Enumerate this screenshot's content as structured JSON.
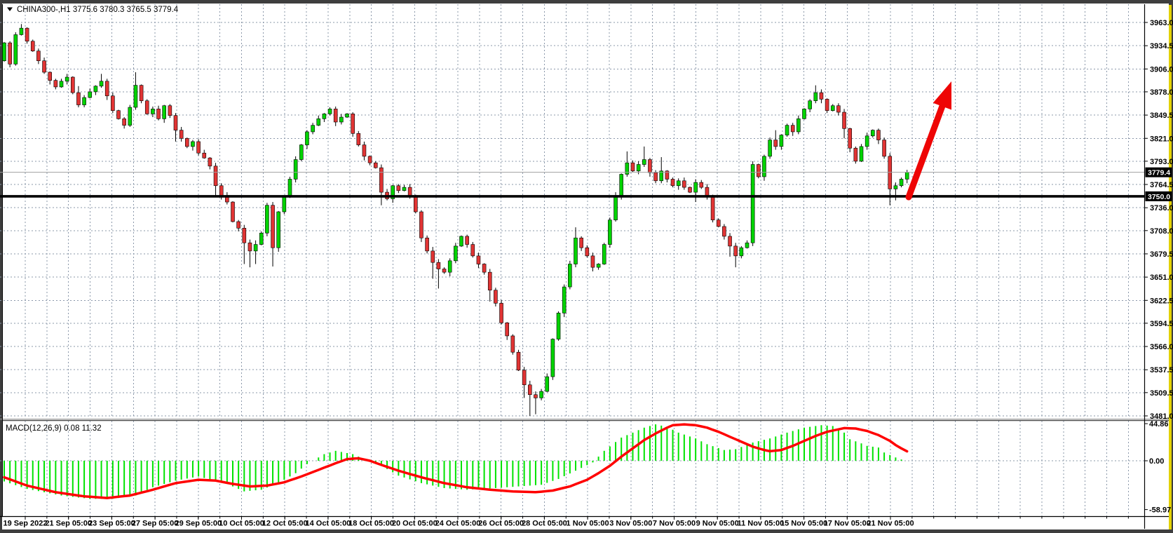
{
  "window": {
    "border_color": "#3e3e3e",
    "accent_strip_color": "#e3d200"
  },
  "chart": {
    "title": "CHINA300-,H1  3775.6 3780.3 3765.5 3779.4",
    "symbol": "CHINA300-",
    "timeframe": "H1",
    "collapse_icon": "triangle-down",
    "price_axis_labels": [
      "3963.0",
      "3934.5",
      "3906.0",
      "3878.0",
      "3849.5",
      "3821.0",
      "3793.0",
      "3764.5",
      "3736.0",
      "3708.0",
      "3679.5",
      "3651.0",
      "3622.5",
      "3594.5",
      "3566.0",
      "3537.5",
      "3509.5",
      "3481.0"
    ],
    "time_axis_labels": [
      "19 Sep 2022",
      "21 Sep 05:00",
      "23 Sep 05:00",
      "27 Sep 05:00",
      "29 Sep 05:00",
      "10 Oct 05:00",
      "12 Oct 05:00",
      "14 Oct 05:00",
      "18 Oct 05:00",
      "20 Oct 05:00",
      "24 Oct 05:00",
      "26 Oct 05:00",
      "28 Oct 05:00",
      "1 Nov 05:00",
      "3 Nov 05:00",
      "7 Nov 05:00",
      "9 Nov 05:00",
      "11 Nov 05:00",
      "15 Nov 05:00",
      "17 Nov 05:00",
      "21 Nov 05:00"
    ],
    "current_price_badge": "3779.4",
    "support_price_badge": "3750.0",
    "colors": {
      "grid": "#8b98aa",
      "bull": "#00d300",
      "bear": "#e13434",
      "wick": "#000000",
      "hist": "#00e300",
      "signal": "#ff0000",
      "support_line": "#000000",
      "price_line": "#a0a0a0",
      "badge_bg": "#000000",
      "badge_fg": "#ffffff",
      "arrow": "#ee0505",
      "axis_line": "#000000"
    }
  },
  "macd": {
    "title": "MACD(12,26,9) 0.08 11.32",
    "axis_labels": [
      "44.86",
      "0.00",
      "-58.97"
    ],
    "current_macd": "0.08",
    "current_signal": "11.32"
  },
  "chart_data": {
    "type": "candlestick",
    "title": "CHINA300-,H1",
    "ohlc_current": {
      "open": 3775.6,
      "high": 3780.3,
      "low": 3765.5,
      "close": 3779.4
    },
    "ylim": [
      3481.0,
      3963.0
    ],
    "x_range": [
      "19 Sep 2022",
      "21 Nov 05:00"
    ],
    "support_level": 3750.0,
    "last_price": 3779.4,
    "first_open": 3916,
    "closes": [
      3938,
      3912,
      3948,
      3956,
      3940,
      3928,
      3916,
      3902,
      3892,
      3884,
      3891,
      3896,
      3877,
      3862,
      3871,
      3878,
      3885,
      3891,
      3873,
      3855,
      3845,
      3837,
      3859,
      3886,
      3867,
      3851,
      3857,
      3845,
      3861,
      3849,
      3831,
      3821,
      3811,
      3817,
      3803,
      3797,
      3787,
      3763,
      3751,
      3743,
      3719,
      3711,
      3693,
      3683,
      3691,
      3705,
      3739,
      3687,
      3731,
      3749,
      3771,
      3795,
      3813,
      3829,
      3837,
      3845,
      3851,
      3857,
      3841,
      3847,
      3851,
      3827,
      3813,
      3799,
      3791,
      3785,
      3755,
      3747,
      3763,
      3757,
      3761,
      3751,
      3731,
      3699,
      3683,
      3669,
      3661,
      3657,
      3671,
      3689,
      3701,
      3691,
      3677,
      3667,
      3657,
      3635,
      3619,
      3595,
      3579,
      3559,
      3537,
      3519,
      3507,
      3503,
      3511,
      3529,
      3575,
      3607,
      3639,
      3667,
      3699,
      3687,
      3677,
      3663,
      3667,
      3691,
      3721,
      3751,
      3777,
      3791,
      3781,
      3789,
      3795,
      3779,
      3769,
      3781,
      3771,
      3763,
      3769,
      3761,
      3755,
      3767,
      3761,
      3751,
      3721,
      3713,
      3701,
      3689,
      3677,
      3687,
      3693,
      3789,
      3774,
      3799,
      3819,
      3811,
      3825,
      3837,
      3829,
      3845,
      3857,
      3867,
      3877,
      3869,
      3855,
      3861,
      3853,
      3833,
      3809,
      3793,
      3811,
      3824,
      3831,
      3819,
      3799,
      3759,
      3763,
      3771,
      3779.4
    ],
    "wick_overrides": {
      "3": [
        5,
        1
      ],
      "13": [
        8,
        3
      ],
      "17": [
        9,
        2
      ],
      "23": [
        16,
        3
      ],
      "30": [
        3,
        14
      ],
      "37": [
        4,
        12
      ],
      "42": [
        4,
        26
      ],
      "43": [
        4,
        20
      ],
      "44": [
        5,
        16
      ],
      "47": [
        4,
        23
      ],
      "66": [
        4,
        16
      ],
      "75": [
        5,
        20
      ],
      "76": [
        4,
        24
      ],
      "85": [
        4,
        14
      ],
      "91": [
        4,
        16
      ],
      "92": [
        5,
        26
      ],
      "93": [
        4,
        20
      ],
      "100": [
        13,
        4
      ],
      "109": [
        14,
        3
      ],
      "112": [
        16,
        3
      ],
      "115": [
        17,
        3
      ],
      "121": [
        4,
        12
      ],
      "127": [
        4,
        13
      ],
      "128": [
        4,
        14
      ],
      "135": [
        12,
        4
      ],
      "142": [
        9,
        3
      ],
      "147": [
        4,
        12
      ],
      "155": [
        4,
        20
      ],
      "156": [
        4,
        14
      ]
    },
    "indicator": {
      "type": "macd_histogram_with_signal",
      "params": [
        12,
        26,
        9
      ],
      "ylim": [
        -58.97,
        44.86
      ],
      "current": {
        "macd": 0.08,
        "signal": 11.32
      },
      "hist_anchors": [
        [
          0,
          -25
        ],
        [
          4,
          -34
        ],
        [
          10,
          -42
        ],
        [
          15,
          -46
        ],
        [
          19,
          -46
        ],
        [
          23,
          -42
        ],
        [
          26,
          -32
        ],
        [
          30,
          -24
        ],
        [
          34,
          -19
        ],
        [
          39,
          -28
        ],
        [
          42,
          -37
        ],
        [
          45,
          -35
        ],
        [
          48,
          -27
        ],
        [
          51,
          -15
        ],
        [
          53,
          -4
        ],
        [
          56,
          8
        ],
        [
          58,
          12
        ],
        [
          61,
          8
        ],
        [
          63,
          2
        ],
        [
          66,
          -6
        ],
        [
          69,
          -18
        ],
        [
          73,
          -27
        ],
        [
          77,
          -33
        ],
        [
          81,
          -35
        ],
        [
          86,
          -33
        ],
        [
          90,
          -31
        ],
        [
          94,
          -29
        ],
        [
          97,
          -22
        ],
        [
          100,
          -12
        ],
        [
          103,
          -2
        ],
        [
          105,
          12
        ],
        [
          108,
          28
        ],
        [
          112,
          40
        ],
        [
          114,
          44
        ],
        [
          116,
          41
        ],
        [
          118,
          34
        ],
        [
          121,
          27
        ],
        [
          123,
          20
        ],
        [
          126,
          13
        ],
        [
          128,
          14
        ],
        [
          131,
          22
        ],
        [
          134,
          27
        ],
        [
          137,
          34
        ],
        [
          140,
          40
        ],
        [
          143,
          43
        ],
        [
          145,
          42
        ],
        [
          147,
          34
        ],
        [
          148,
          26
        ],
        [
          150,
          21
        ],
        [
          151,
          18
        ],
        [
          153,
          16
        ],
        [
          154,
          10
        ],
        [
          155,
          7
        ],
        [
          156,
          4
        ],
        [
          157,
          1.5
        ],
        [
          158,
          0.08
        ]
      ],
      "signal_anchors": [
        [
          0,
          -20
        ],
        [
          4,
          -30
        ],
        [
          9,
          -38
        ],
        [
          14,
          -43
        ],
        [
          18,
          -45
        ],
        [
          22,
          -42
        ],
        [
          26,
          -35
        ],
        [
          30,
          -27
        ],
        [
          34,
          -23
        ],
        [
          37,
          -24
        ],
        [
          40,
          -28
        ],
        [
          43,
          -31
        ],
        [
          46,
          -30
        ],
        [
          49,
          -26
        ],
        [
          52,
          -19
        ],
        [
          55,
          -11
        ],
        [
          58,
          -3
        ],
        [
          60,
          2
        ],
        [
          62,
          3
        ],
        [
          64,
          0
        ],
        [
          66,
          -5
        ],
        [
          69,
          -12
        ],
        [
          73,
          -20
        ],
        [
          77,
          -27
        ],
        [
          81,
          -32
        ],
        [
          85,
          -35
        ],
        [
          89,
          -37
        ],
        [
          93,
          -38
        ],
        [
          96,
          -36
        ],
        [
          99,
          -31
        ],
        [
          102,
          -23
        ],
        [
          104,
          -15
        ],
        [
          106,
          -6
        ],
        [
          108,
          5
        ],
        [
          110,
          15
        ],
        [
          112,
          25
        ],
        [
          114,
          33
        ],
        [
          116,
          40
        ],
        [
          117,
          43
        ],
        [
          119,
          44
        ],
        [
          121,
          43
        ],
        [
          123,
          40
        ],
        [
          125,
          35
        ],
        [
          127,
          29
        ],
        [
          129,
          23
        ],
        [
          131,
          17
        ],
        [
          133,
          13
        ],
        [
          134,
          11.5
        ],
        [
          136,
          13
        ],
        [
          138,
          18
        ],
        [
          140,
          24
        ],
        [
          142,
          30
        ],
        [
          144,
          35
        ],
        [
          146,
          38
        ],
        [
          147,
          39.5
        ],
        [
          149,
          39
        ],
        [
          151,
          36
        ],
        [
          153,
          31
        ],
        [
          155,
          24
        ],
        [
          156,
          19
        ],
        [
          157,
          15
        ],
        [
          158,
          11.32
        ]
      ],
      "zero_level": 0.0
    },
    "annotation_arrow": {
      "tail": [
        1296,
        281
      ],
      "tip": [
        1357,
        116
      ]
    }
  }
}
